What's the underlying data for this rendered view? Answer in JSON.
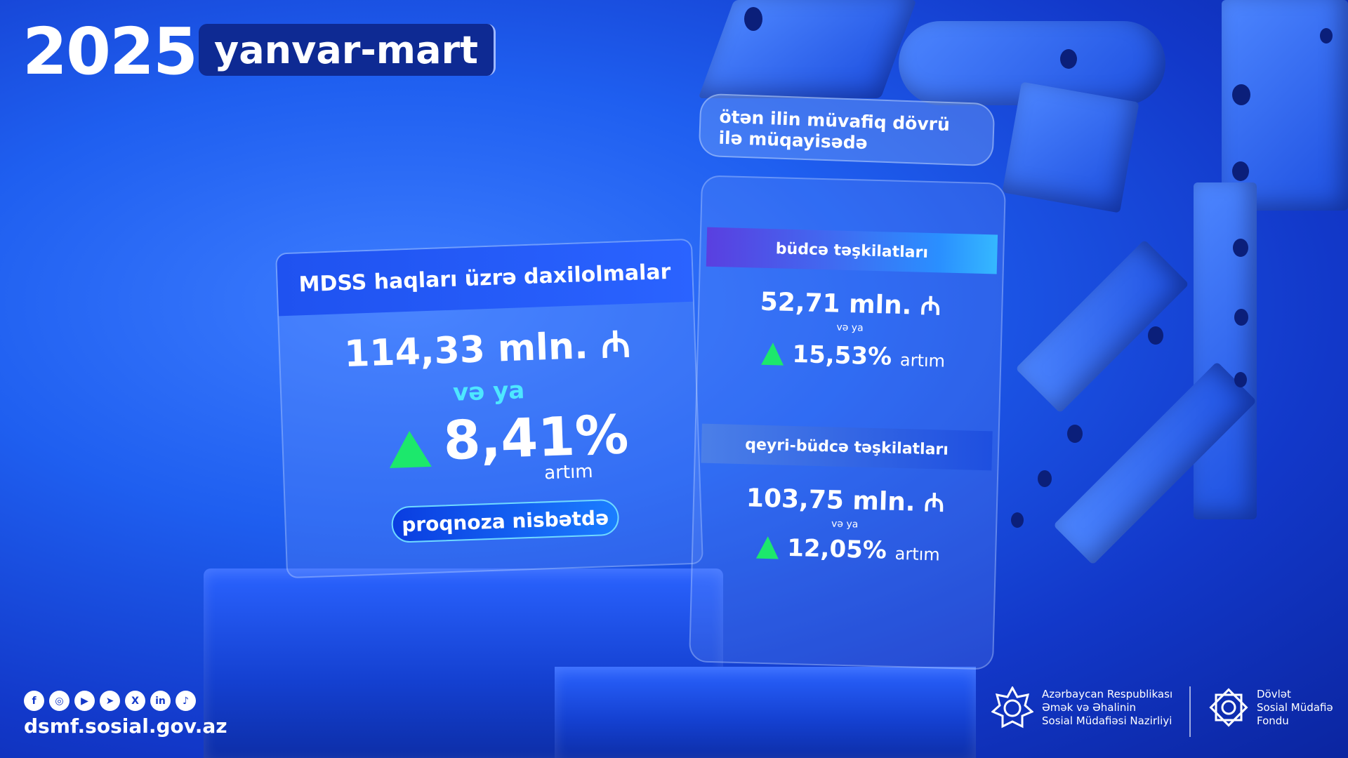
{
  "header": {
    "year": "2025",
    "period": "yanvar-mart"
  },
  "main_card": {
    "title": "MDSS haqları üzrə daxilolmalar",
    "amount": "114,33 mln. ₼",
    "or_text": "və ya",
    "percent": "8,41%",
    "growth_label": "artım",
    "forecast_label": "proqnoza nisbətdə"
  },
  "comparison": {
    "label_line1": "ötən ilin müvafiq dövrü",
    "label_line2": "ilə müqayisədə",
    "sections": [
      {
        "title": "büdcə təşkilatları",
        "amount": "52,71 mln. ₼",
        "or_text": "və ya",
        "percent": "15,53%",
        "growth_label": "artım"
      },
      {
        "title": "qeyri-büdcə təşkilatları",
        "amount": "103,75 mln. ₼",
        "or_text": "və ya",
        "percent": "12,05%",
        "growth_label": "artım"
      }
    ]
  },
  "footer": {
    "socials": [
      {
        "name": "facebook-icon",
        "glyph": "f"
      },
      {
        "name": "instagram-icon",
        "glyph": "◎"
      },
      {
        "name": "youtube-icon",
        "glyph": "▶"
      },
      {
        "name": "telegram-icon",
        "glyph": "➤"
      },
      {
        "name": "x-icon",
        "glyph": "X"
      },
      {
        "name": "linkedin-icon",
        "glyph": "in"
      },
      {
        "name": "tiktok-icon",
        "glyph": "♪"
      }
    ],
    "website": "dsmf.sosial.gov.az",
    "ministry": [
      "Azərbaycan Respublikası",
      "Əmək və Əhalinin",
      "Sosial Müdafiəsi Nazirliyi"
    ],
    "fund": [
      "Dövlət",
      "Sosial Müdafiə",
      "Fondu"
    ]
  },
  "colors": {
    "accent_green": "#1ce86c",
    "accent_cyan": "#4ee7ff",
    "dark_blue": "#0e2a93"
  }
}
